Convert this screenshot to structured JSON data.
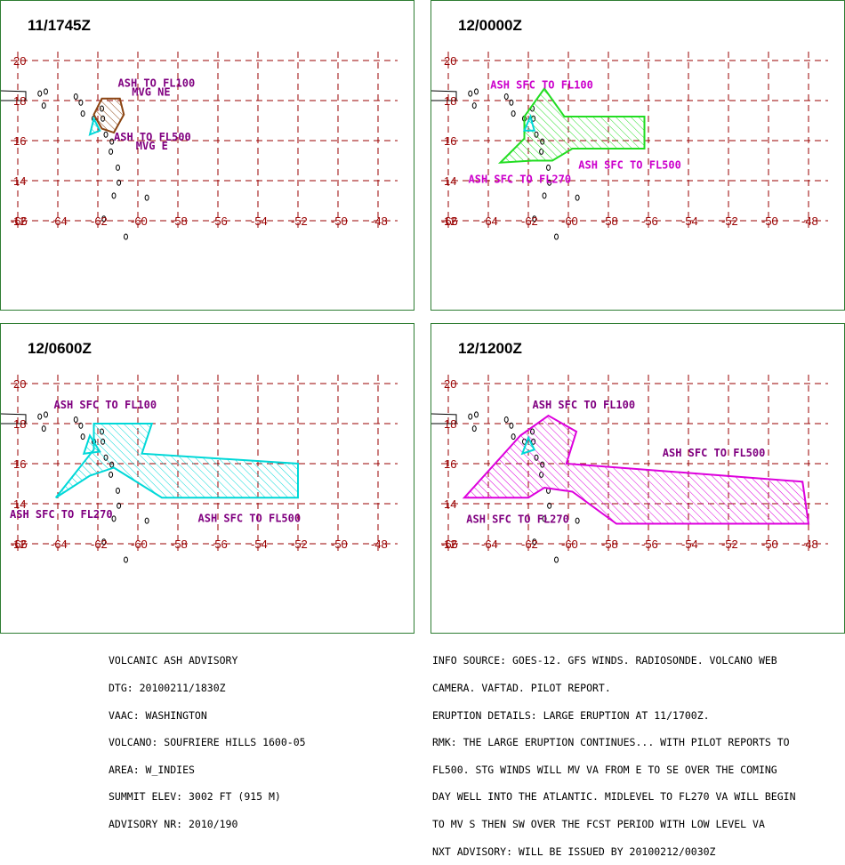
{
  "colors": {
    "grid": "#990000",
    "axis_label": "#990000",
    "coast": "#000000",
    "label_purple": "#800080",
    "label_magenta": "#cc00cc",
    "brown": "#8b4513",
    "cyan": "#00d8d8",
    "green": "#22dd22",
    "magenta": "#dd00dd",
    "border": "#2e7d32"
  },
  "axes": {
    "lon_ticks": [
      "-66",
      "-64",
      "-62",
      "-60",
      "-58",
      "-56",
      "-54",
      "-52",
      "-50",
      "-48"
    ],
    "lat_ticks": [
      "20",
      "18",
      "16",
      "14",
      "12"
    ]
  },
  "panels": [
    {
      "title": "11/1745Z",
      "areas": [
        {
          "color": "brown",
          "points": [
            [
              -61.8,
              16.6
            ],
            [
              -62.2,
              17.3
            ],
            [
              -61.8,
              18.1
            ],
            [
              -60.9,
              18.1
            ],
            [
              -60.7,
              17.3
            ],
            [
              -61.2,
              16.4
            ]
          ]
        },
        {
          "color": "cyan",
          "points": [
            [
              -62.2,
              17.1
            ],
            [
              -62.4,
              16.3
            ],
            [
              -61.9,
              16.5
            ]
          ]
        }
      ],
      "labels": [
        {
          "text": "ASH TO FL100",
          "color": "label_purple",
          "lon": -61.0,
          "lat": 18.7
        },
        {
          "text": "MVG NE",
          "color": "label_purple",
          "lon": -60.3,
          "lat": 18.25
        },
        {
          "text": "ASH TO FL500",
          "color": "label_purple",
          "lon": -61.2,
          "lat": 16.0
        },
        {
          "text": "MVG E",
          "color": "label_purple",
          "lon": -60.1,
          "lat": 15.55
        }
      ]
    },
    {
      "title": "12/0000Z",
      "areas": [
        {
          "color": "green",
          "points": [
            [
              -62.2,
              17.2
            ],
            [
              -61.2,
              18.6
            ],
            [
              -60.2,
              17.2
            ],
            [
              -56.2,
              17.2
            ],
            [
              -56.2,
              15.6
            ],
            [
              -59.8,
              15.6
            ],
            [
              -60.8,
              15.0
            ],
            [
              -61.8,
              15.0
            ],
            [
              -63.4,
              14.9
            ],
            [
              -62.2,
              16.1
            ]
          ]
        },
        {
          "color": "cyan",
          "points": [
            [
              -61.9,
              17.2
            ],
            [
              -62.2,
              16.5
            ],
            [
              -61.7,
              16.5
            ]
          ]
        }
      ],
      "labels": [
        {
          "text": "ASH SFC TO FL100",
          "color": "label_magenta",
          "lon": -63.9,
          "lat": 18.6
        },
        {
          "text": "ASH SFC TO FL500",
          "color": "label_magenta",
          "lon": -59.5,
          "lat": 14.6
        },
        {
          "text": "ASH SFC TO FL270",
          "color": "label_magenta",
          "lon": -65.0,
          "lat": 13.9
        }
      ]
    },
    {
      "title": "12/0600Z",
      "areas": [
        {
          "color": "cyan",
          "points": [
            [
              -62.2,
              16.7
            ],
            [
              -62.2,
              18.0
            ],
            [
              -59.3,
              18.0
            ],
            [
              -59.8,
              16.5
            ],
            [
              -52.0,
              16.0
            ],
            [
              -52.0,
              14.3
            ],
            [
              -58.8,
              14.3
            ],
            [
              -61.2,
              15.8
            ],
            [
              -62.4,
              15.4
            ],
            [
              -64.1,
              14.3
            ]
          ]
        },
        {
          "color": "cyan",
          "points": [
            [
              -62.4,
              17.4
            ],
            [
              -62.7,
              16.5
            ],
            [
              -61.9,
              16.6
            ]
          ]
        }
      ],
      "labels": [
        {
          "text": "ASH SFC TO FL100",
          "color": "label_purple",
          "lon": -64.2,
          "lat": 18.75
        },
        {
          "text": "ASH SFC TO FL270",
          "color": "label_purple",
          "lon": -66.4,
          "lat": 13.3
        },
        {
          "text": "ASH SFC TO FL500",
          "color": "label_purple",
          "lon": -57.0,
          "lat": 13.1
        }
      ]
    },
    {
      "title": "12/1200Z",
      "areas": [
        {
          "color": "magenta",
          "points": [
            [
              -62.4,
              17.4
            ],
            [
              -61.0,
              18.4
            ],
            [
              -59.6,
              17.6
            ],
            [
              -60.1,
              16.0
            ],
            [
              -48.3,
              15.1
            ],
            [
              -48.0,
              13.0
            ],
            [
              -57.6,
              13.0
            ],
            [
              -59.8,
              14.6
            ],
            [
              -61.2,
              14.8
            ],
            [
              -62.0,
              14.3
            ],
            [
              -65.2,
              14.3
            ]
          ]
        },
        {
          "color": "cyan",
          "points": [
            [
              -62.0,
              17.3
            ],
            [
              -62.3,
              16.5
            ],
            [
              -61.7,
              16.7
            ]
          ]
        }
      ],
      "labels": [
        {
          "text": "ASH SFC TO FL100",
          "color": "label_purple",
          "lon": -61.8,
          "lat": 18.75
        },
        {
          "text": "ASH SFC TO FL500",
          "color": "label_purple",
          "lon": -55.3,
          "lat": 16.35
        },
        {
          "text": "ASH SFC TO FL270",
          "color": "label_purple",
          "lon": -65.1,
          "lat": 13.05
        }
      ]
    }
  ],
  "footer_left": [
    "VOLCANIC ASH ADVISORY",
    "DTG: 20100211/1830Z",
    "VAAC: WASHINGTON",
    "VOLCANO: SOUFRIERE HILLS 1600-05",
    "AREA: W_INDIES",
    "SUMMIT ELEV: 3002 FT (915 M)",
    "ADVISORY NR: 2010/190"
  ],
  "footer_right": [
    "INFO SOURCE: GOES-12. GFS WINDS. RADIOSONDE. VOLCANO WEB",
    "CAMERA. VAFTAD. PILOT REPORT.",
    "ERUPTION DETAILS: LARGE ERUPTION AT 11/1700Z.",
    "RMK: THE LARGE ERUPTION CONTINUES... WITH PILOT REPORTS TO",
    "FL500. STG WINDS WILL MV VA FROM E TO SE OVER THE COMING",
    "DAY WELL INTO THE ATLANTIC. MIDLEVEL TO FL270 VA WILL BEGIN",
    "TO MV S THEN SW OVER THE FCST PERIOD WITH LOW LEVEL VA",
    "NXT ADVISORY: WILL BE ISSUED BY 20100212/0030Z"
  ]
}
